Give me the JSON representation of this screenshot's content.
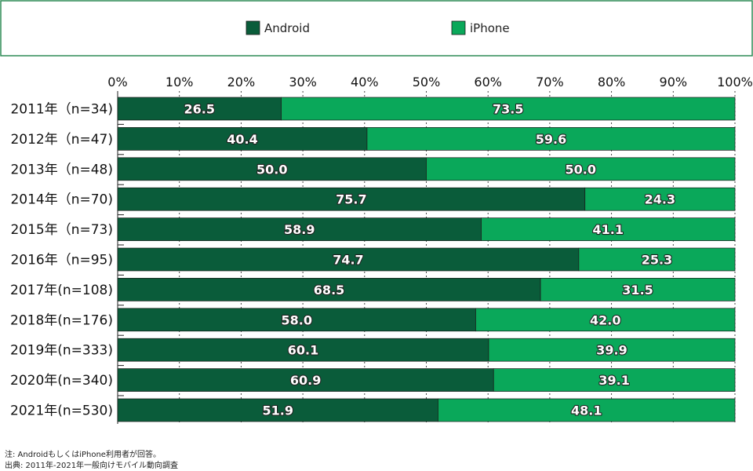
{
  "chart_data": {
    "type": "bar",
    "orientation": "horizontal",
    "stacked": true,
    "percent_scale": true,
    "categories": [
      "2011年（n=34)",
      "2012年（n=47)",
      "2013年（n=48)",
      "2014年（n=70)",
      "2015年（n=73)",
      "2016年（n=95)",
      "2017年(n=108)",
      "2018年(n=176)",
      "2019年(n=333)",
      "2020年(n=340)",
      "2021年(n=530)"
    ],
    "series": [
      {
        "name": "Android",
        "color": "#0a5c3a",
        "values": [
          26.5,
          40.4,
          50.0,
          75.7,
          58.9,
          74.7,
          68.5,
          58.0,
          60.1,
          60.9,
          51.9
        ],
        "labels": [
          "26.5",
          "40.4",
          "50.0",
          "75.7",
          "58.9",
          "74.7",
          "68.5",
          "58.0",
          "60.1",
          "60.9",
          "51.9"
        ]
      },
      {
        "name": "iPhone",
        "color": "#0aa85a",
        "values": [
          73.5,
          59.6,
          50.0,
          24.3,
          41.1,
          25.3,
          31.5,
          42.0,
          39.9,
          39.1,
          48.1
        ],
        "labels": [
          "73.5",
          "59.6",
          "50.0",
          "24.3",
          "41.1",
          "25.3",
          "31.5",
          "42.0",
          "39.9",
          "39.1",
          "48.1"
        ]
      }
    ],
    "xlim": [
      0,
      100
    ],
    "xticks": [
      0,
      10,
      20,
      30,
      40,
      50,
      60,
      70,
      80,
      90,
      100
    ],
    "xtick_labels": [
      "0%",
      "10%",
      "20%",
      "30%",
      "40%",
      "50%",
      "60%",
      "70%",
      "80%",
      "90%",
      "100%"
    ],
    "grid": "vertical dashed",
    "legend_position": "top"
  },
  "notes": {
    "note": "注: AndroidもしくはiPhone利用者が回答。",
    "source": "出典: 2011年-2021年一般向けモバイル動向調査"
  }
}
